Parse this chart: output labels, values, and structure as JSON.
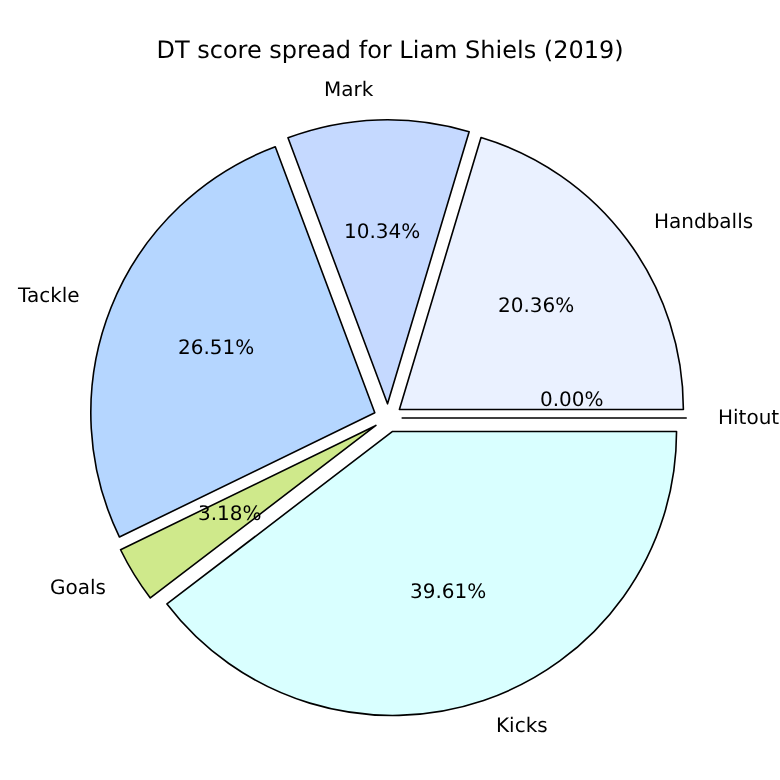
{
  "chart_data": {
    "type": "pie",
    "title": "DT score spread for Liam Shiels (2019)",
    "categories": [
      "Handballs",
      "Mark",
      "Tackle",
      "Goals",
      "Kicks",
      "Hitout"
    ],
    "values": [
      20.36,
      10.34,
      26.51,
      3.18,
      39.61,
      0.0
    ],
    "colors": [
      "#eaf1ff",
      "#c5d9ff",
      "#b5d6ff",
      "#cfe98b",
      "#d9ffff",
      "#e6e6ff"
    ],
    "value_labels": [
      "20.36%",
      "10.34%",
      "26.51%",
      "3.18%",
      "39.61%",
      "0.00%"
    ]
  }
}
